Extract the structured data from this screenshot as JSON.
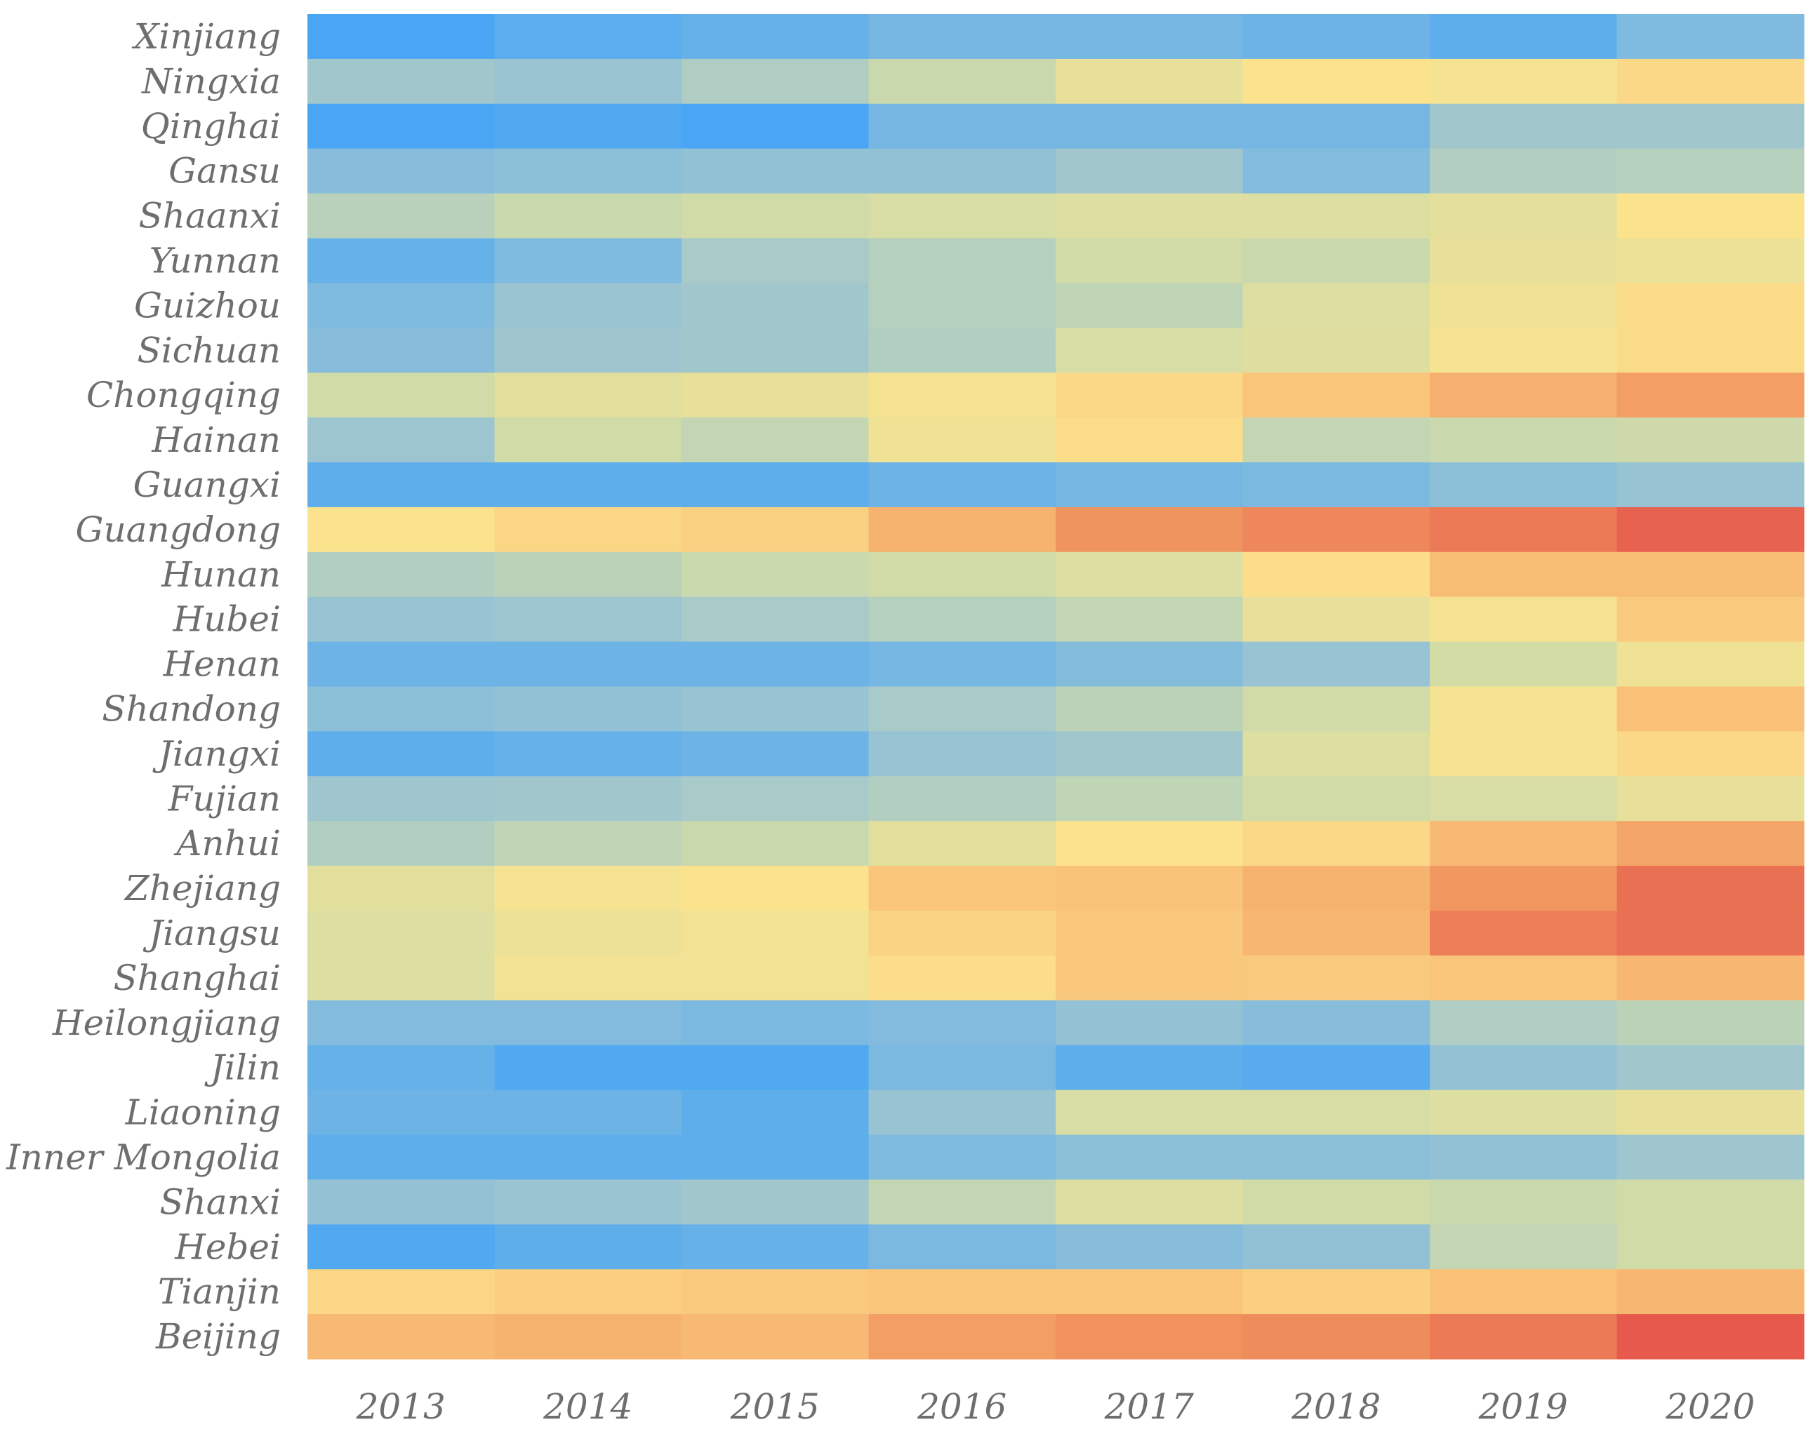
{
  "chart_data": {
    "type": "heatmap",
    "title": "",
    "xlabel": "",
    "ylabel": "",
    "x_categories": [
      "2013",
      "2014",
      "2015",
      "2016",
      "2017",
      "2018",
      "2019",
      "2020"
    ],
    "y_categories": [
      "Xinjiang",
      "Ningxia",
      "Qinghai",
      "Gansu",
      "Shaanxi",
      "Yunnan",
      "Guizhou",
      "Sichuan",
      "Chongqing",
      "Hainan",
      "Guangxi",
      "Guangdong",
      "Hunan",
      "Hubei",
      "Henan",
      "Shandong",
      "Jiangxi",
      "Fujian",
      "Anhui",
      "Zhejiang",
      "Jiangsu",
      "Shanghai",
      "Heilongjiang",
      "Jilin",
      "Liaoning",
      "Inner Mongolia",
      "Shanxi",
      "Hebei",
      "Tianjin",
      "Beijing"
    ],
    "value_range": [
      0,
      1
    ],
    "colormap": {
      "low": "#4aa6f4",
      "stops": [
        "#4aa6f4",
        "#7db9e0",
        "#a3c8cc",
        "#d4dca6",
        "#fbe48e",
        "#f9c278",
        "#f0925e",
        "#e45049"
      ],
      "high": "#e45049"
    },
    "values": [
      [
        0.0,
        0.05,
        0.08,
        0.12,
        0.12,
        0.1,
        0.06,
        0.15
      ],
      [
        0.28,
        0.25,
        0.32,
        0.4,
        0.5,
        0.58,
        0.55,
        0.62
      ],
      [
        0.0,
        0.02,
        0.0,
        0.12,
        0.12,
        0.12,
        0.28,
        0.28
      ],
      [
        0.18,
        0.2,
        0.22,
        0.22,
        0.28,
        0.16,
        0.33,
        0.34
      ],
      [
        0.35,
        0.4,
        0.42,
        0.44,
        0.46,
        0.46,
        0.49,
        0.58
      ],
      [
        0.08,
        0.15,
        0.3,
        0.34,
        0.42,
        0.4,
        0.5,
        0.52
      ],
      [
        0.15,
        0.25,
        0.28,
        0.34,
        0.37,
        0.46,
        0.53,
        0.61
      ],
      [
        0.18,
        0.27,
        0.28,
        0.33,
        0.44,
        0.47,
        0.55,
        0.61
      ],
      [
        0.42,
        0.48,
        0.5,
        0.55,
        0.62,
        0.7,
        0.77,
        0.82
      ],
      [
        0.26,
        0.42,
        0.38,
        0.53,
        0.6,
        0.38,
        0.4,
        0.41
      ],
      [
        0.06,
        0.06,
        0.06,
        0.1,
        0.12,
        0.14,
        0.2,
        0.24
      ],
      [
        0.58,
        0.63,
        0.65,
        0.76,
        0.85,
        0.88,
        0.91,
        0.96
      ],
      [
        0.33,
        0.36,
        0.4,
        0.42,
        0.46,
        0.6,
        0.73,
        0.73
      ],
      [
        0.24,
        0.26,
        0.3,
        0.34,
        0.38,
        0.5,
        0.55,
        0.68
      ],
      [
        0.1,
        0.1,
        0.1,
        0.12,
        0.17,
        0.24,
        0.43,
        0.53
      ],
      [
        0.2,
        0.22,
        0.24,
        0.3,
        0.36,
        0.42,
        0.55,
        0.72
      ],
      [
        0.06,
        0.08,
        0.1,
        0.24,
        0.28,
        0.46,
        0.55,
        0.62
      ],
      [
        0.27,
        0.28,
        0.3,
        0.33,
        0.37,
        0.42,
        0.44,
        0.5
      ],
      [
        0.33,
        0.37,
        0.4,
        0.48,
        0.58,
        0.62,
        0.74,
        0.8
      ],
      [
        0.48,
        0.55,
        0.58,
        0.7,
        0.71,
        0.76,
        0.84,
        0.93
      ],
      [
        0.46,
        0.52,
        0.54,
        0.64,
        0.69,
        0.75,
        0.9,
        0.93
      ],
      [
        0.46,
        0.54,
        0.54,
        0.6,
        0.69,
        0.68,
        0.7,
        0.75
      ],
      [
        0.16,
        0.16,
        0.14,
        0.16,
        0.23,
        0.18,
        0.32,
        0.36
      ],
      [
        0.08,
        0.02,
        0.02,
        0.14,
        0.06,
        0.04,
        0.23,
        0.28
      ],
      [
        0.1,
        0.1,
        0.06,
        0.24,
        0.44,
        0.44,
        0.46,
        0.5
      ],
      [
        0.06,
        0.06,
        0.06,
        0.15,
        0.2,
        0.2,
        0.22,
        0.27
      ],
      [
        0.23,
        0.25,
        0.28,
        0.38,
        0.46,
        0.42,
        0.4,
        0.42
      ],
      [
        0.02,
        0.06,
        0.08,
        0.14,
        0.18,
        0.22,
        0.38,
        0.42
      ],
      [
        0.63,
        0.67,
        0.68,
        0.7,
        0.7,
        0.66,
        0.72,
        0.75
      ],
      [
        0.74,
        0.76,
        0.74,
        0.82,
        0.86,
        0.87,
        0.91,
        0.98
      ]
    ]
  }
}
